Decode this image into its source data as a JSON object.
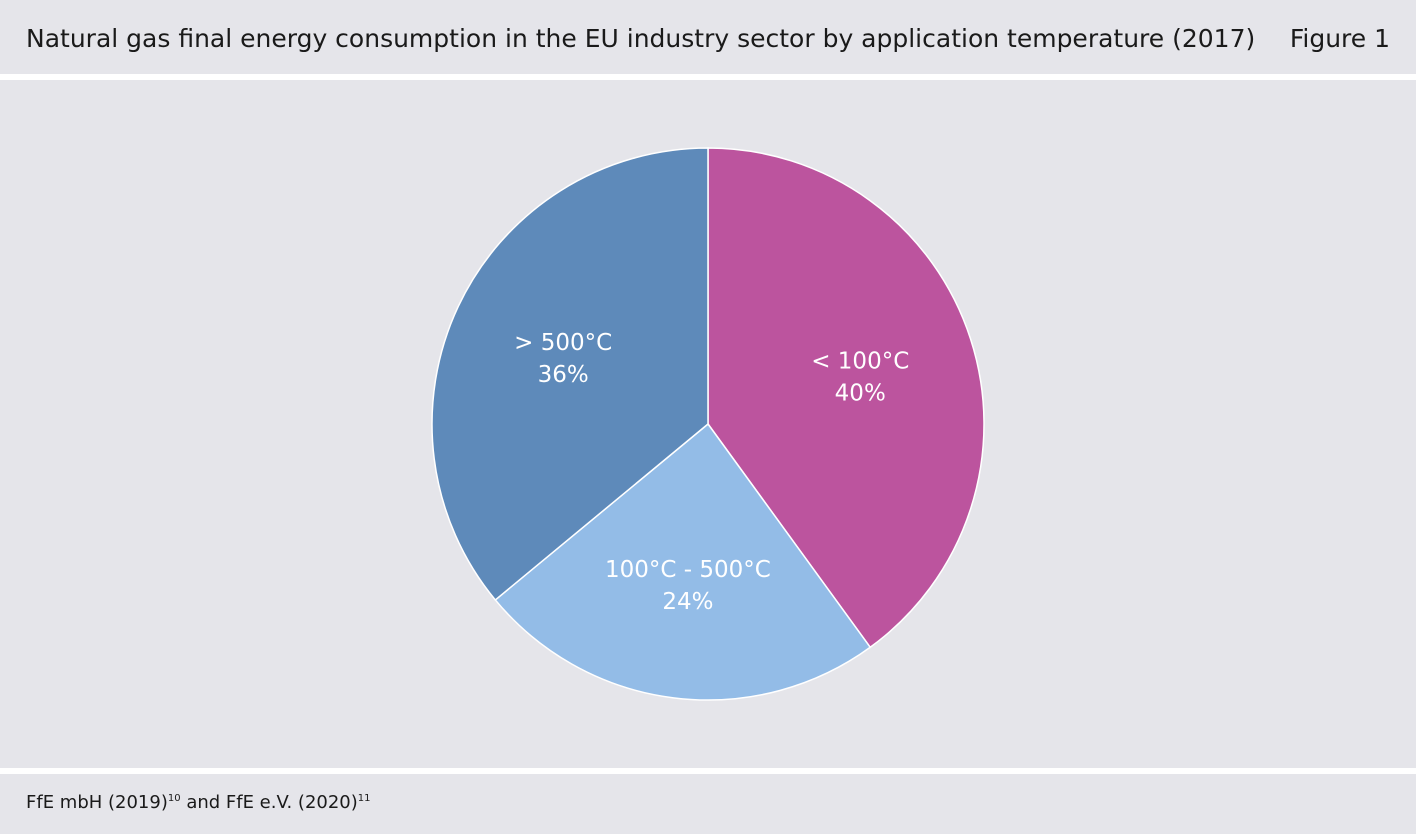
{
  "header": {
    "title": "Natural gas final energy consumption in the EU industry sector by application temperature (2017)",
    "figure_label": "Figure 1"
  },
  "footer": {
    "source_part1": "FfE mbH (2019)",
    "source_ref1": "10",
    "source_part2": " and FfE e.V. (2020)",
    "source_ref2": "11"
  },
  "colors": {
    "background": "#e5e5ea",
    "lt100": "#bc549e",
    "mid": "#93bce7",
    "gt500": "#5e8aba"
  },
  "chart_data": {
    "type": "pie",
    "title": "Natural gas final energy consumption in the EU industry sector by application temperature (2017)",
    "slices": [
      {
        "label": "< 100°C",
        "value": 40,
        "value_label": "40%",
        "color": "#bc549e"
      },
      {
        "label": "100°C - 500°C",
        "value": 24,
        "value_label": "24%",
        "color": "#93bce7"
      },
      {
        "label": "> 500°C",
        "value": 36,
        "value_label": "36%",
        "color": "#5e8aba"
      }
    ]
  }
}
